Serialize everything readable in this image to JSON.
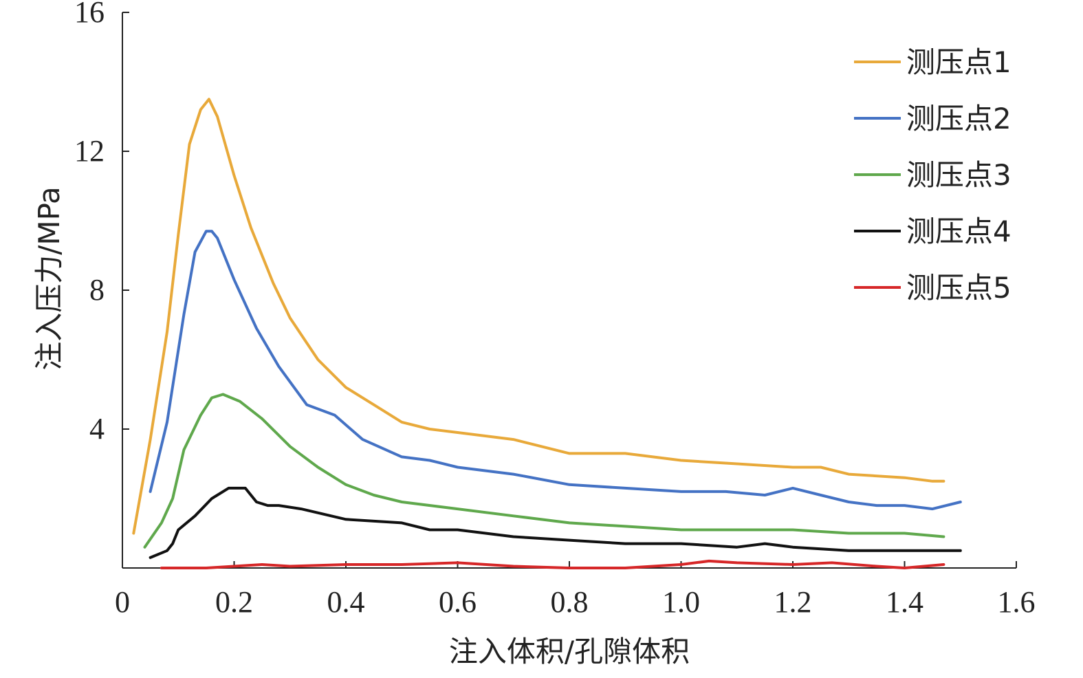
{
  "chart_data": {
    "type": "line",
    "title": "",
    "xlabel": "注入体积/孔隙体积",
    "ylabel": "注入压力/MPa",
    "xlim": [
      0,
      1.6
    ],
    "ylim": [
      0,
      16
    ],
    "x_ticks": [
      "0",
      "0.2",
      "0.4",
      "0.6",
      "0.8",
      "1.0",
      "1.2",
      "1.4",
      "1.6"
    ],
    "y_ticks": [
      "4",
      "8",
      "12",
      "16"
    ],
    "grid": false,
    "legend_position": "top-right",
    "series": [
      {
        "name": "测压点1",
        "color": "#E8A93A",
        "points": [
          [
            0.02,
            1.0
          ],
          [
            0.05,
            3.7
          ],
          [
            0.08,
            6.8
          ],
          [
            0.1,
            9.6
          ],
          [
            0.12,
            12.2
          ],
          [
            0.14,
            13.2
          ],
          [
            0.155,
            13.5
          ],
          [
            0.17,
            13.0
          ],
          [
            0.2,
            11.3
          ],
          [
            0.23,
            9.8
          ],
          [
            0.27,
            8.2
          ],
          [
            0.3,
            7.2
          ],
          [
            0.35,
            6.0
          ],
          [
            0.4,
            5.2
          ],
          [
            0.45,
            4.7
          ],
          [
            0.5,
            4.2
          ],
          [
            0.55,
            4.0
          ],
          [
            0.6,
            3.9
          ],
          [
            0.7,
            3.7
          ],
          [
            0.8,
            3.3
          ],
          [
            0.85,
            3.3
          ],
          [
            0.9,
            3.3
          ],
          [
            1.0,
            3.1
          ],
          [
            1.1,
            3.0
          ],
          [
            1.2,
            2.9
          ],
          [
            1.25,
            2.9
          ],
          [
            1.3,
            2.7
          ],
          [
            1.4,
            2.6
          ],
          [
            1.45,
            2.5
          ],
          [
            1.47,
            2.5
          ]
        ]
      },
      {
        "name": "测压点2",
        "color": "#4472C4",
        "points": [
          [
            0.05,
            2.2
          ],
          [
            0.08,
            4.2
          ],
          [
            0.11,
            7.3
          ],
          [
            0.13,
            9.1
          ],
          [
            0.15,
            9.7
          ],
          [
            0.16,
            9.7
          ],
          [
            0.17,
            9.5
          ],
          [
            0.2,
            8.3
          ],
          [
            0.24,
            6.9
          ],
          [
            0.28,
            5.8
          ],
          [
            0.33,
            4.7
          ],
          [
            0.38,
            4.4
          ],
          [
            0.43,
            3.7
          ],
          [
            0.5,
            3.2
          ],
          [
            0.55,
            3.1
          ],
          [
            0.6,
            2.9
          ],
          [
            0.7,
            2.7
          ],
          [
            0.8,
            2.4
          ],
          [
            0.9,
            2.3
          ],
          [
            1.0,
            2.2
          ],
          [
            1.08,
            2.2
          ],
          [
            1.15,
            2.1
          ],
          [
            1.2,
            2.3
          ],
          [
            1.25,
            2.1
          ],
          [
            1.3,
            1.9
          ],
          [
            1.35,
            1.8
          ],
          [
            1.37,
            1.8
          ],
          [
            1.4,
            1.8
          ],
          [
            1.45,
            1.7
          ],
          [
            1.5,
            1.9
          ]
        ]
      },
      {
        "name": "测压点3",
        "color": "#5FA84C",
        "points": [
          [
            0.04,
            0.6
          ],
          [
            0.07,
            1.3
          ],
          [
            0.09,
            2.0
          ],
          [
            0.11,
            3.4
          ],
          [
            0.14,
            4.4
          ],
          [
            0.16,
            4.9
          ],
          [
            0.18,
            5.0
          ],
          [
            0.21,
            4.8
          ],
          [
            0.25,
            4.3
          ],
          [
            0.3,
            3.5
          ],
          [
            0.35,
            2.9
          ],
          [
            0.4,
            2.4
          ],
          [
            0.45,
            2.1
          ],
          [
            0.5,
            1.9
          ],
          [
            0.6,
            1.7
          ],
          [
            0.7,
            1.5
          ],
          [
            0.8,
            1.3
          ],
          [
            0.9,
            1.2
          ],
          [
            1.0,
            1.1
          ],
          [
            1.1,
            1.1
          ],
          [
            1.2,
            1.1
          ],
          [
            1.3,
            1.0
          ],
          [
            1.4,
            1.0
          ],
          [
            1.47,
            0.9
          ]
        ]
      },
      {
        "name": "测压点4",
        "color": "#111111",
        "points": [
          [
            0.05,
            0.3
          ],
          [
            0.08,
            0.5
          ],
          [
            0.09,
            0.7
          ],
          [
            0.1,
            1.1
          ],
          [
            0.13,
            1.5
          ],
          [
            0.16,
            2.0
          ],
          [
            0.19,
            2.3
          ],
          [
            0.22,
            2.3
          ],
          [
            0.24,
            1.9
          ],
          [
            0.26,
            1.8
          ],
          [
            0.28,
            1.8
          ],
          [
            0.32,
            1.7
          ],
          [
            0.4,
            1.4
          ],
          [
            0.5,
            1.3
          ],
          [
            0.55,
            1.1
          ],
          [
            0.6,
            1.1
          ],
          [
            0.7,
            0.9
          ],
          [
            0.8,
            0.8
          ],
          [
            0.9,
            0.7
          ],
          [
            1.0,
            0.7
          ],
          [
            1.1,
            0.6
          ],
          [
            1.15,
            0.7
          ],
          [
            1.2,
            0.6
          ],
          [
            1.3,
            0.5
          ],
          [
            1.37,
            0.5
          ],
          [
            1.4,
            0.5
          ],
          [
            1.45,
            0.5
          ],
          [
            1.5,
            0.5
          ]
        ]
      },
      {
        "name": "测压点5",
        "color": "#D62728",
        "points": [
          [
            0.07,
            0.0
          ],
          [
            0.15,
            0.0
          ],
          [
            0.2,
            0.05
          ],
          [
            0.25,
            0.1
          ],
          [
            0.3,
            0.05
          ],
          [
            0.4,
            0.1
          ],
          [
            0.5,
            0.1
          ],
          [
            0.6,
            0.15
          ],
          [
            0.7,
            0.05
          ],
          [
            0.8,
            0.0
          ],
          [
            0.9,
            0.0
          ],
          [
            1.0,
            0.1
          ],
          [
            1.05,
            0.2
          ],
          [
            1.1,
            0.15
          ],
          [
            1.2,
            0.1
          ],
          [
            1.27,
            0.15
          ],
          [
            1.35,
            0.05
          ],
          [
            1.4,
            0.0
          ],
          [
            1.47,
            0.1
          ]
        ]
      }
    ]
  }
}
